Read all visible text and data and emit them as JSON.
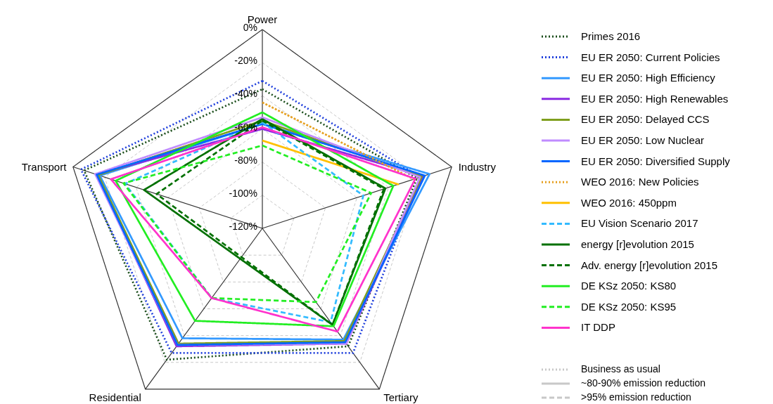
{
  "chart_data": {
    "type": "radar",
    "categories": [
      "Power",
      "Industry",
      "Tertiary",
      "Residential",
      "Transport"
    ],
    "ylim": [
      -120,
      0
    ],
    "yticks": [
      {
        "value": -120,
        "label": "-120%"
      },
      {
        "value": -100,
        "label": "-100%"
      },
      {
        "value": -80,
        "label": "-80%"
      },
      {
        "value": -60,
        "label": "-60%"
      },
      {
        "value": -40,
        "label": "-40%"
      },
      {
        "value": -20,
        "label": "-20%"
      },
      {
        "value": 0,
        "label": "0%"
      }
    ],
    "grid": true,
    "legend": "right",
    "series": [
      {
        "name": "Primes 2016",
        "color": "#1a4d1a",
        "line_style": "dotted",
        "values": [
          -36,
          -22,
          -32,
          -22,
          -7
        ]
      },
      {
        "name": "EU ER 2050: Current Policies",
        "color": "#1f3fdc",
        "line_style": "dotted",
        "values": [
          -31,
          -20,
          -27,
          -27,
          -5
        ]
      },
      {
        "name": "EU ER 2050: High Efficiency",
        "color": "#3399ff",
        "line_style": "solid",
        "values": [
          -57,
          -14,
          -37,
          -38,
          -17
        ]
      },
      {
        "name": "EU ER 2050: High Renewables",
        "color": "#8a2be2",
        "line_style": "solid",
        "values": [
          -60,
          -18,
          -34,
          -32,
          -15
        ]
      },
      {
        "name": "EU ER 2050: Delayed CCS",
        "color": "#7f9f1f",
        "line_style": "solid",
        "values": [
          -55,
          -19,
          -36,
          -34,
          -16
        ]
      },
      {
        "name": "EU ER 2050: Low Nuclear",
        "color": "#c08cff",
        "line_style": "solid",
        "values": [
          -53,
          -20,
          -34,
          -33,
          -14
        ]
      },
      {
        "name": "EU ER 2050: Diversified Supply",
        "color": "#0066ff",
        "line_style": "solid",
        "values": [
          -57,
          -17,
          -35,
          -33,
          -15
        ]
      },
      {
        "name": "WEO 2016: New Policies",
        "color": "#e6a020",
        "line_style": "dotted",
        "values": [
          -44,
          -24,
          null,
          null,
          null
        ]
      },
      {
        "name": "WEO 2016: 450ppm",
        "color": "#ffc000",
        "line_style": "solid",
        "values": [
          -67,
          -34,
          null,
          null,
          null
        ]
      },
      {
        "name": "EU Vision Scenario 2017",
        "color": "#33bbff",
        "line_style": "dashed",
        "values": [
          -56,
          -56,
          -50,
          -68,
          -33
        ]
      },
      {
        "name": "energy [r]evolution 2015",
        "color": "#007000",
        "line_style": "solid",
        "values": [
          -54,
          -42,
          -48,
          null,
          -45
        ]
      },
      {
        "name": "Adv. energy [r]evolution 2015",
        "color": "#007000",
        "line_style": "dashed",
        "values": [
          -55,
          -43,
          -48,
          null,
          -53
        ]
      },
      {
        "name": "DE KSz 2050: KS80",
        "color": "#22ee22",
        "line_style": "solid",
        "values": [
          -50,
          -37,
          -47,
          -51,
          -27
        ]
      },
      {
        "name": "DE KSz 2050: KS95",
        "color": "#22ee22",
        "line_style": "dashed",
        "values": [
          -70,
          -51,
          -65,
          -68,
          -32
        ]
      },
      {
        "name": "IT DDP",
        "color": "#ff33cc",
        "line_style": "solid",
        "values": [
          -59,
          -23,
          -43,
          -68,
          -24
        ]
      }
    ],
    "annotations": [
      "Business as usual",
      "~80-90% emission reduction",
      ">95% emission reduction"
    ]
  }
}
